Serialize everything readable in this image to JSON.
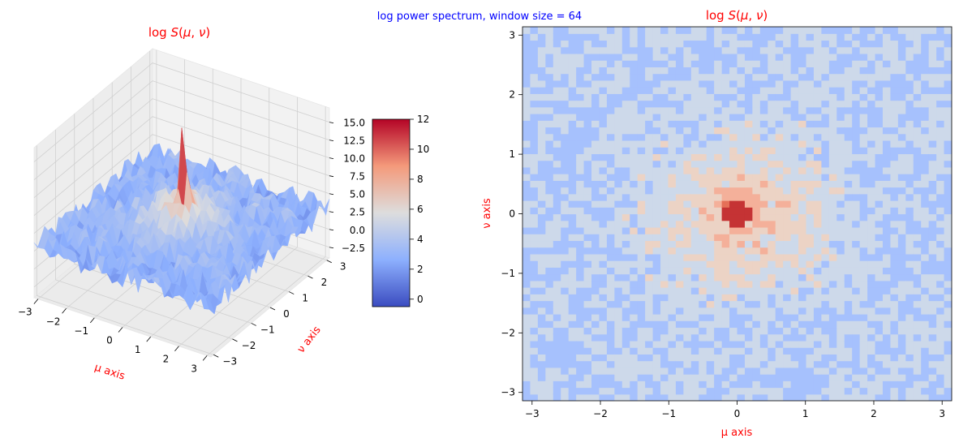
{
  "suptitle": "log power spectrum, window size = 64",
  "colors": {
    "title": "#ff0000",
    "suptitle": "#0000ff",
    "axis_label": "#ff0000"
  },
  "chart_data": [
    {
      "type": "surface",
      "title": "log S(μ, ν)",
      "xlabel": "μ axis",
      "ylabel": "ν axis",
      "xticks": [
        "−3",
        "−2",
        "−1",
        "0",
        "1",
        "2",
        "3"
      ],
      "yticks": [
        "−3",
        "−2",
        "−1",
        "0",
        "1",
        "2",
        "3"
      ],
      "zticks": [
        "−2.5",
        "0.0",
        "2.5",
        "5.0",
        "7.5",
        "10.0",
        "12.5",
        "15.0"
      ],
      "xlim": [
        -3.14,
        3.14
      ],
      "ylim": [
        -3.14,
        3.14
      ],
      "zlim": [
        -4,
        17
      ],
      "colormap": "coolwarm",
      "peak_value": 17,
      "peak_location": [
        0,
        0
      ],
      "grid": true
    },
    {
      "type": "colorbar",
      "ticks": [
        "0",
        "2",
        "4",
        "6",
        "8",
        "10",
        "12"
      ],
      "range": [
        -0.5,
        12
      ],
      "colormap": "coolwarm"
    },
    {
      "type": "contourf",
      "title": "log S(μ, ν)",
      "xlabel": "μ axis",
      "ylabel": "ν axis",
      "xticks": [
        "−3",
        "−2",
        "−1",
        "0",
        "1",
        "2",
        "3"
      ],
      "yticks": [
        "−3",
        "−2",
        "−1",
        "0",
        "1",
        "2",
        "3"
      ],
      "xlim": [
        -3.14,
        3.14
      ],
      "ylim": [
        -3.14,
        3.14
      ],
      "colormap": "coolwarm"
    }
  ]
}
